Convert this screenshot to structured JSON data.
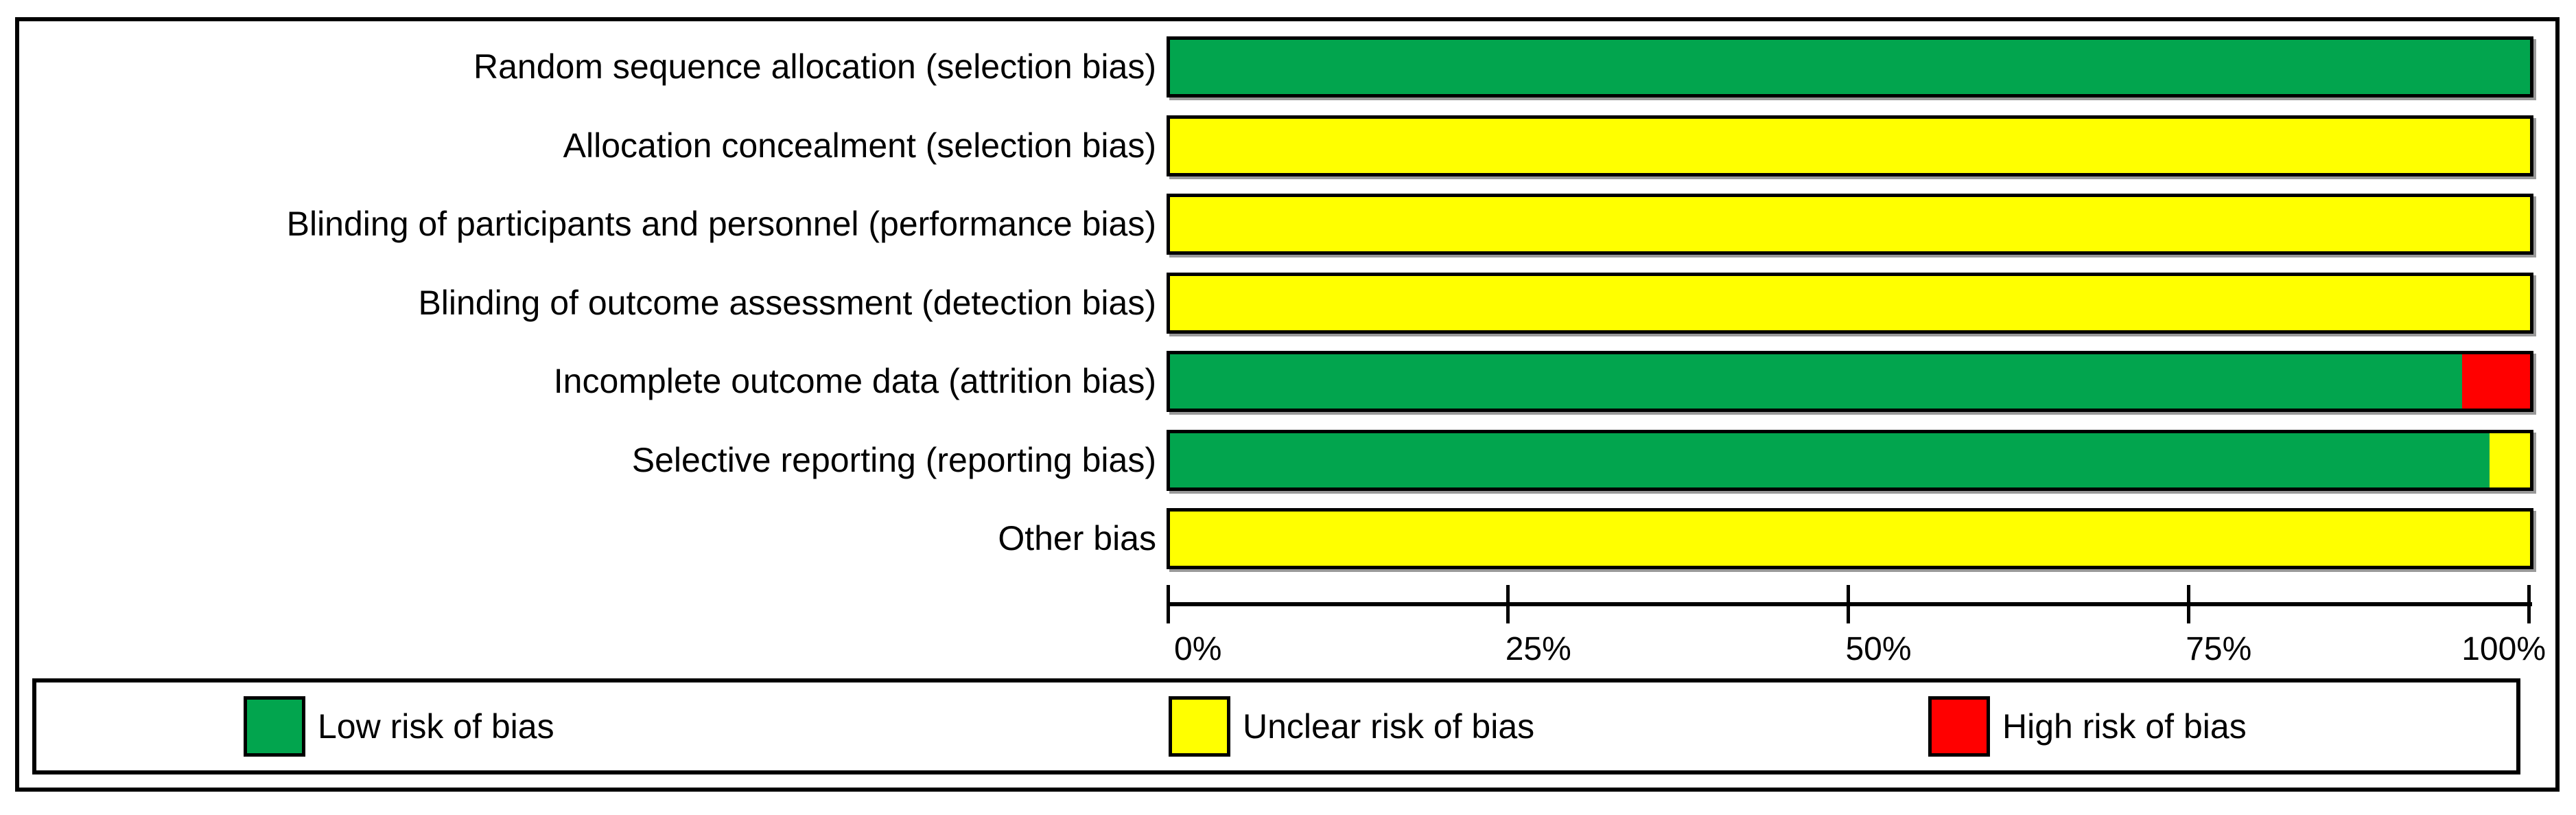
{
  "chart_data": {
    "type": "bar",
    "orientation": "horizontal-stacked",
    "title": "",
    "xlabel": "",
    "ylabel": "",
    "xlim": [
      0,
      100
    ],
    "grid": false,
    "categories": [
      "Random sequence allocation (selection bias)",
      "Allocation concealment (selection bias)",
      "Blinding of participants and personnel (performance bias)",
      "Blinding of outcome assessment (detection bias)",
      "Incomplete outcome data (attrition bias)",
      "Selective reporting (reporting bias)",
      "Other bias"
    ],
    "series": [
      {
        "name": "Low risk of bias",
        "color": "#02A54E",
        "values": [
          100,
          0,
          0,
          0,
          95,
          97,
          0
        ]
      },
      {
        "name": "Unclear risk of bias",
        "color": "#FFFF00",
        "values": [
          0,
          100,
          100,
          100,
          0,
          3,
          100
        ]
      },
      {
        "name": "High risk of bias",
        "color": "#FF0000",
        "values": [
          0,
          0,
          0,
          0,
          5,
          0,
          0
        ]
      }
    ],
    "x_ticks": [
      "0%",
      "25%",
      "50%",
      "75%",
      "100%"
    ],
    "legend": {
      "position": "bottom",
      "entries": [
        {
          "label": "Low risk of bias",
          "color": "#02A54E"
        },
        {
          "label": "Unclear risk of bias",
          "color": "#FFFF00"
        },
        {
          "label": "High risk of bias",
          "color": "#FF0000"
        }
      ]
    }
  },
  "colors": {
    "border": "#000000",
    "background": "#FFFFFF",
    "bar_shadow": "#999999"
  }
}
